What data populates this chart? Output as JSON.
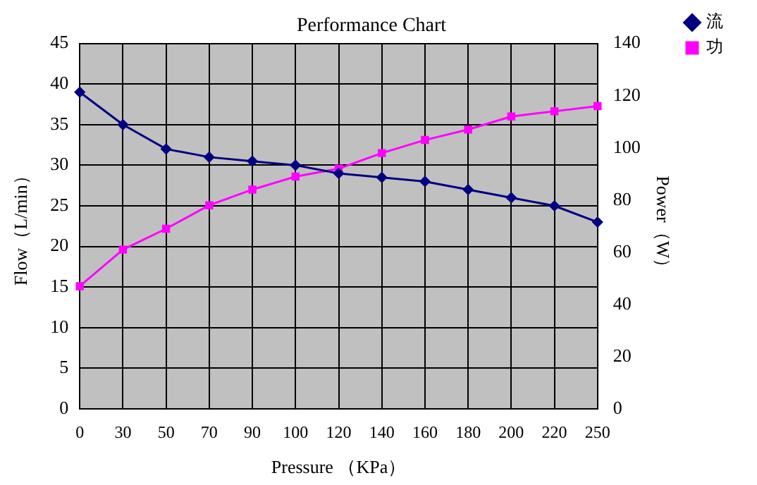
{
  "chart_data": {
    "type": "line",
    "title": "Performance Chart",
    "xlabel": "Pressure （KPa）",
    "ylabel": "Flow（L/min）",
    "y2label": "Power（W）",
    "categories": [
      "0",
      "30",
      "50",
      "70",
      "90",
      "100",
      "120",
      "140",
      "160",
      "180",
      "200",
      "220",
      "250"
    ],
    "series": [
      {
        "name": "流",
        "color": "#000080",
        "marker": "diamond",
        "values": [
          39,
          35,
          32,
          31,
          30.5,
          30,
          29,
          28.5,
          28,
          27,
          26,
          25,
          23
        ]
      },
      {
        "name": "功",
        "color": "#ff00ff",
        "marker": "square",
        "axis": "y2",
        "values": [
          47,
          61,
          69,
          78,
          84,
          89,
          92,
          98,
          103,
          107,
          112,
          114,
          116
        ]
      }
    ],
    "ylim": [
      0,
      45
    ],
    "yticks": [
      0,
      5,
      10,
      15,
      20,
      25,
      30,
      35,
      40,
      45
    ],
    "y2lim": [
      0,
      140
    ],
    "y2ticks": [
      0,
      20,
      40,
      60,
      80,
      100,
      120,
      140
    ],
    "grid": true,
    "legend": "top right",
    "line_style": "solid"
  }
}
